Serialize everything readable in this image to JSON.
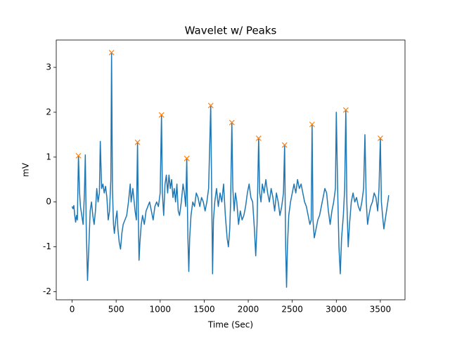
{
  "chart_data": {
    "type": "line",
    "title": "Wavelet w/ Peaks",
    "xlabel": "Time (Sec)",
    "ylabel": "mV",
    "xlim": [
      -180,
      3780
    ],
    "ylim": [
      -2.18,
      3.61
    ],
    "xticks": [
      0,
      500,
      1000,
      1500,
      2000,
      2500,
      3000,
      3500
    ],
    "yticks": [
      -2,
      -1,
      0,
      1,
      2,
      3
    ],
    "grid": false,
    "series": [
      {
        "color": "#1f77b4",
        "marker": "none",
        "x": [
          0,
          10,
          20,
          30,
          40,
          50,
          60,
          72,
          85,
          95,
          110,
          125,
          140,
          150,
          160,
          175,
          190,
          205,
          220,
          235,
          250,
          265,
          280,
          295,
          310,
          320,
          335,
          350,
          365,
          380,
          395,
          410,
          425,
          440,
          448,
          458,
          470,
          480,
          495,
          510,
          520,
          535,
          550,
          565,
          580,
          600,
          620,
          640,
          660,
          670,
          690,
          700,
          715,
          730,
          743,
          752,
          760,
          770,
          785,
          800,
          820,
          840,
          860,
          880,
          900,
          920,
          940,
          960,
          980,
          1000,
          1015,
          1025,
          1040,
          1055,
          1070,
          1085,
          1100,
          1115,
          1130,
          1145,
          1160,
          1175,
          1190,
          1205,
          1220,
          1240,
          1260,
          1275,
          1290,
          1302,
          1315,
          1325,
          1335,
          1350,
          1370,
          1390,
          1410,
          1430,
          1450,
          1470,
          1490,
          1510,
          1530,
          1550,
          1574,
          1585,
          1595,
          1605,
          1620,
          1640,
          1660,
          1680,
          1700,
          1720,
          1740,
          1760,
          1775,
          1790,
          1800,
          1814,
          1825,
          1840,
          1855,
          1870,
          1890,
          1910,
          1930,
          1950,
          1970,
          1990,
          2010,
          2030,
          2050,
          2070,
          2085,
          2100,
          2118,
          2130,
          2145,
          2160,
          2180,
          2200,
          2220,
          2240,
          2260,
          2280,
          2300,
          2320,
          2340,
          2360,
          2380,
          2400,
          2413,
          2425,
          2435,
          2445,
          2460,
          2480,
          2500,
          2520,
          2540,
          2560,
          2580,
          2600,
          2620,
          2640,
          2660,
          2680,
          2700,
          2715,
          2725,
          2735,
          2750,
          2770,
          2790,
          2810,
          2830,
          2850,
          2870,
          2890,
          2910,
          2930,
          2950,
          2970,
          2990,
          3000,
          3015,
          3030,
          3045,
          3060,
          3080,
          3095,
          3108,
          3120,
          3135,
          3150,
          3170,
          3190,
          3210,
          3230,
          3250,
          3270,
          3290,
          3310,
          3325,
          3340,
          3355,
          3370,
          3390,
          3410,
          3430,
          3450,
          3470,
          3485,
          3500,
          3512,
          3525,
          3540,
          3555,
          3570,
          3585,
          3595
        ],
        "values": [
          -0.1,
          -0.15,
          -0.08,
          -0.3,
          -0.45,
          -0.3,
          -0.4,
          1.03,
          0.2,
          -0.1,
          -0.3,
          -0.5,
          0.2,
          1.05,
          -0.5,
          -1.75,
          -1.0,
          -0.2,
          0.0,
          -0.3,
          -0.5,
          -0.2,
          0.3,
          0.0,
          0.2,
          1.35,
          0.3,
          0.4,
          0.2,
          0.35,
          0.1,
          -0.4,
          -0.2,
          0.5,
          3.33,
          0.3,
          -0.5,
          -0.7,
          -0.4,
          -0.2,
          -0.6,
          -0.9,
          -1.05,
          -0.7,
          -0.5,
          -0.4,
          -0.3,
          0.0,
          0.4,
          0.0,
          0.3,
          0.1,
          -0.2,
          -0.4,
          1.33,
          -0.3,
          -1.3,
          -0.9,
          -0.5,
          -0.3,
          -0.5,
          -0.2,
          -0.1,
          0.0,
          -0.2,
          -0.4,
          -0.1,
          0.0,
          -0.1,
          0.2,
          1.94,
          0.2,
          -0.3,
          0.4,
          0.6,
          0.2,
          0.6,
          0.3,
          0.5,
          0.1,
          0.3,
          0.0,
          0.4,
          -0.2,
          -0.3,
          0.0,
          0.4,
          0.2,
          -0.1,
          0.97,
          -0.8,
          -1.55,
          -0.8,
          -0.3,
          0.0,
          -0.1,
          0.2,
          0.1,
          -0.1,
          0.1,
          0.0,
          -0.2,
          0.0,
          0.3,
          2.15,
          0.2,
          -1.6,
          -0.4,
          0.0,
          0.3,
          -0.1,
          0.2,
          0.0,
          0.4,
          -0.3,
          -0.8,
          -1.0,
          -0.6,
          0.0,
          1.77,
          0.3,
          -0.2,
          0.2,
          0.0,
          -0.5,
          -0.2,
          -0.4,
          -0.3,
          -0.1,
          0.2,
          0.4,
          0.1,
          0.0,
          -0.6,
          -1.2,
          -0.5,
          1.42,
          0.2,
          0.0,
          0.4,
          0.2,
          0.5,
          0.2,
          0.0,
          0.3,
          0.1,
          -0.2,
          0.2,
          0.0,
          -0.3,
          -0.1,
          0.2,
          1.27,
          -1.0,
          -1.9,
          -1.0,
          -0.3,
          0.0,
          0.2,
          0.4,
          0.2,
          0.5,
          0.3,
          0.4,
          0.2,
          0.0,
          -0.1,
          -0.3,
          -0.5,
          -0.4,
          1.73,
          -0.4,
          -0.8,
          -0.6,
          -0.4,
          -0.3,
          -0.1,
          0.1,
          0.3,
          0.2,
          -0.2,
          -0.5,
          -0.2,
          0.0,
          0.3,
          2.0,
          0.3,
          -1.0,
          -1.6,
          -0.8,
          -0.3,
          0.3,
          2.05,
          0.0,
          -1.0,
          -0.5,
          0.0,
          0.2,
          0.0,
          0.1,
          -0.1,
          -0.2,
          0.0,
          0.3,
          1.5,
          0.0,
          -0.5,
          -0.3,
          -0.1,
          0.0,
          0.2,
          0.1,
          -0.2,
          0.3,
          1.42,
          0.0,
          -0.3,
          -0.6,
          -0.4,
          -0.2,
          0.0,
          0.15
        ]
      },
      {
        "color": "#ff7f0e",
        "marker": "x",
        "x": [
          72,
          448,
          743,
          1015,
          1302,
          1574,
          1814,
          2118,
          2413,
          2725,
          3108,
          3500
        ],
        "values": [
          1.03,
          3.33,
          1.33,
          1.94,
          0.97,
          2.15,
          1.77,
          1.42,
          1.27,
          1.73,
          2.05,
          1.42
        ]
      }
    ]
  }
}
